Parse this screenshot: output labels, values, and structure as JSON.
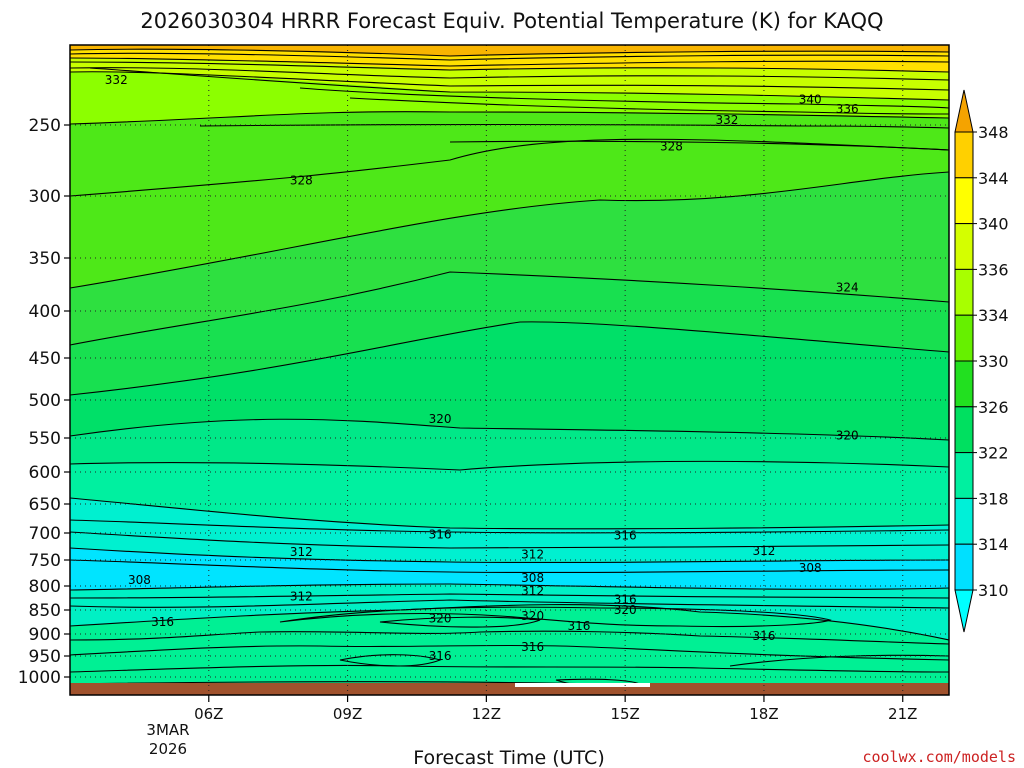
{
  "chart_data": {
    "type": "heatmap",
    "title": "2026030304 HRRR Forecast Equiv. Potential Temperature (K) for KAQQ",
    "xlabel": "Forecast Time (UTC)",
    "ylabel": "",
    "y_axis": {
      "ticks": [
        250,
        300,
        350,
        400,
        450,
        500,
        550,
        600,
        650,
        700,
        750,
        800,
        850,
        900,
        950,
        1000
      ],
      "tick_labels": [
        "250",
        "300",
        "350",
        "400",
        "450",
        "500",
        "550",
        "600",
        "650",
        "700",
        "750",
        "800",
        "850",
        "900",
        "950",
        "1000"
      ],
      "range": [
        1040,
        200
      ]
    },
    "x_axis": {
      "ticks": [
        6,
        9,
        12,
        15,
        18,
        21
      ],
      "tick_labels": [
        "06Z",
        "09Z",
        "12Z",
        "15Z",
        "18Z",
        "21Z"
      ],
      "range": [
        3,
        22
      ],
      "date_line1": "3MAR",
      "date_line2": "2026"
    },
    "grid": "dotted",
    "colorbar": {
      "ticks": [
        348,
        344,
        340,
        336,
        334,
        330,
        326,
        322,
        318,
        314,
        310
      ],
      "tick_labels": [
        "348",
        "344",
        "340",
        "336",
        "334",
        "330",
        "326",
        "322",
        "318",
        "314",
        "310"
      ],
      "colors": [
        "#f5a300",
        "#ffd000",
        "#ffff00",
        "#d4ff00",
        "#a8ff00",
        "#66f000",
        "#22e020",
        "#00e060",
        "#00f0a0",
        "#00f0d8",
        "#00e0ff",
        "#00ffff"
      ],
      "placement": "right"
    },
    "contour_labels": [
      {
        "text": "332",
        "x": 4.0,
        "y": 222
      },
      {
        "text": "340",
        "x": 19.0,
        "y": 234
      },
      {
        "text": "336",
        "x": 19.8,
        "y": 240
      },
      {
        "text": "332",
        "x": 17.2,
        "y": 247
      },
      {
        "text": "328",
        "x": 16.0,
        "y": 265
      },
      {
        "text": "328",
        "x": 8.0,
        "y": 289
      },
      {
        "text": "324",
        "x": 19.8,
        "y": 378
      },
      {
        "text": "320",
        "x": 11.0,
        "y": 525
      },
      {
        "text": "320",
        "x": 19.8,
        "y": 547
      },
      {
        "text": "316",
        "x": 11.0,
        "y": 703
      },
      {
        "text": "316",
        "x": 15.0,
        "y": 705
      },
      {
        "text": "312",
        "x": 8.0,
        "y": 735
      },
      {
        "text": "312",
        "x": 13.0,
        "y": 740
      },
      {
        "text": "312",
        "x": 18.0,
        "y": 733
      },
      {
        "text": "308",
        "x": 4.5,
        "y": 788
      },
      {
        "text": "308",
        "x": 13.0,
        "y": 785
      },
      {
        "text": "308",
        "x": 19.0,
        "y": 765
      },
      {
        "text": "312",
        "x": 8.0,
        "y": 822
      },
      {
        "text": "312",
        "x": 13.0,
        "y": 810
      },
      {
        "text": "316",
        "x": 15.0,
        "y": 828
      },
      {
        "text": "320",
        "x": 15.0,
        "y": 850
      },
      {
        "text": "316",
        "x": 5.0,
        "y": 875
      },
      {
        "text": "320",
        "x": 11.0,
        "y": 868
      },
      {
        "text": "320",
        "x": 13.0,
        "y": 862
      },
      {
        "text": "316",
        "x": 14.0,
        "y": 883
      },
      {
        "text": "316",
        "x": 18.0,
        "y": 905
      },
      {
        "text": "316",
        "x": 13.0,
        "y": 930
      },
      {
        "text": "316",
        "x": 11.0,
        "y": 950
      }
    ],
    "ground_color": "#a0522d"
  },
  "credit": "coolwx.com/models"
}
